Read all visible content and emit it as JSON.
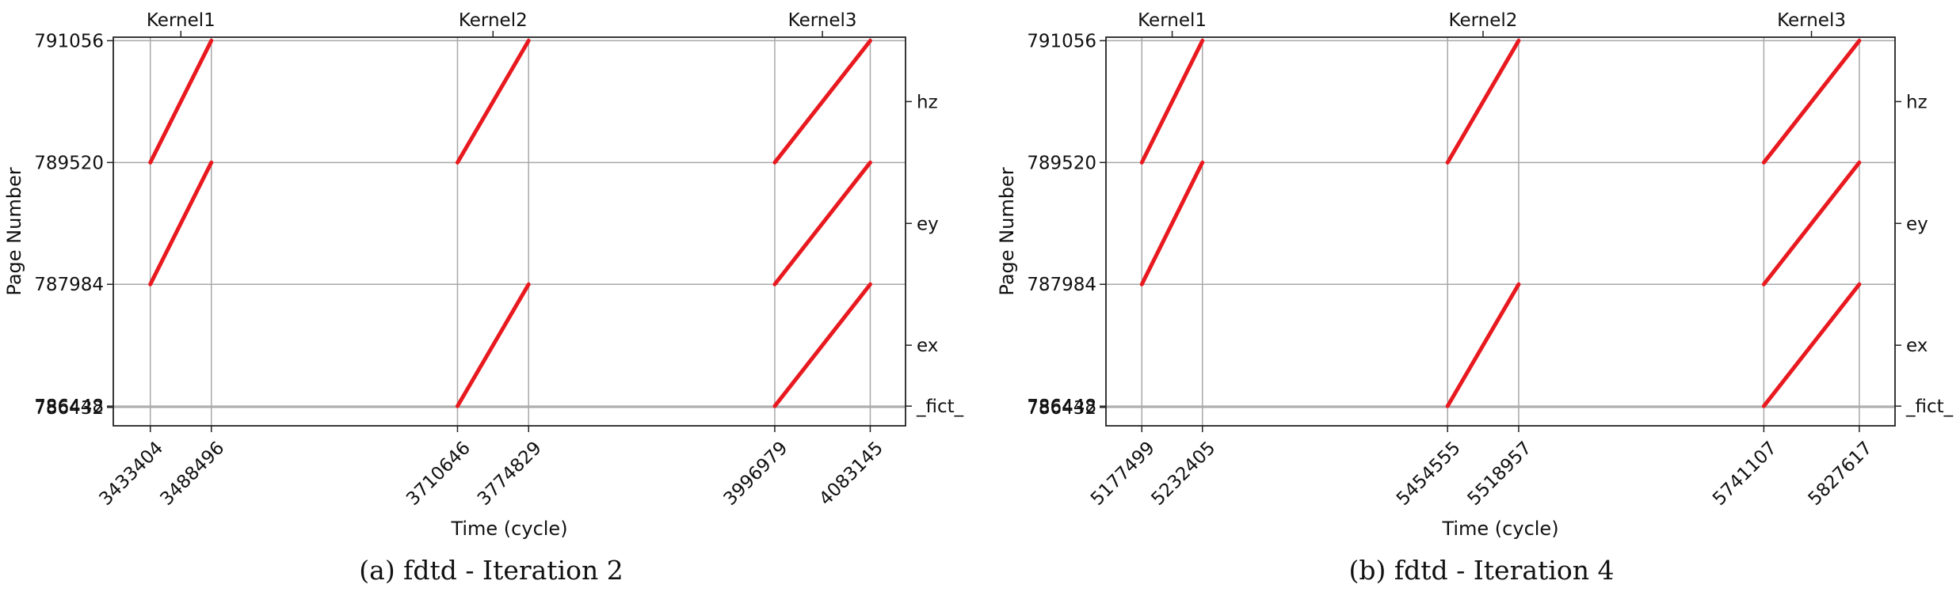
{
  "figure": {
    "background": "#ffffff",
    "series_color": "#e8191f",
    "grid_color": "#a8a8a8"
  },
  "chart_data": [
    {
      "type": "line",
      "caption": "(a) fdtd - Iteration 2",
      "xlabel": "Time (cycle)",
      "ylabel": "Page Number",
      "grid": true,
      "xlim": [
        3400000,
        4115000
      ],
      "ylim": [
        786200,
        791100
      ],
      "x_ticks": [
        3433404,
        3488496,
        3710646,
        3774829,
        3996979,
        4083145
      ],
      "x_tick_labels": [
        "3433404",
        "3488496",
        "3710646",
        "3774829",
        "3996979",
        "4083145"
      ],
      "y_ticks": [
        786432,
        786448,
        787984,
        789520,
        791056
      ],
      "y_tick_labels": [
        "786432",
        "786448",
        "787984",
        "789520",
        "791056"
      ],
      "top_ticks": [
        3461000,
        3742700,
        4040000
      ],
      "top_labels": [
        "Kernel1",
        "Kernel2",
        "Kernel3"
      ],
      "right_ticks": [
        786448,
        787216,
        788752,
        790288
      ],
      "right_labels": [
        "_fict_",
        "ex",
        "ey",
        "hz"
      ],
      "series": [
        {
          "name": "hz",
          "x": [
            3433404,
            3488496
          ],
          "y": [
            789520,
            791056
          ]
        },
        {
          "name": "ey",
          "x": [
            3433404,
            3488496
          ],
          "y": [
            787984,
            789520
          ]
        },
        {
          "name": "hz",
          "x": [
            3710646,
            3774829
          ],
          "y": [
            789520,
            791056
          ]
        },
        {
          "name": "ex",
          "x": [
            3710646,
            3774829
          ],
          "y": [
            786448,
            787984
          ]
        },
        {
          "name": "hz",
          "x": [
            3996979,
            4083145
          ],
          "y": [
            789520,
            791056
          ]
        },
        {
          "name": "ey",
          "x": [
            3996979,
            4083145
          ],
          "y": [
            787984,
            789520
          ]
        },
        {
          "name": "ex",
          "x": [
            3996979,
            4083145
          ],
          "y": [
            786448,
            787984
          ]
        }
      ]
    },
    {
      "type": "line",
      "caption": "(b) fdtd - Iteration 4",
      "xlabel": "Time (cycle)",
      "ylabel": "Page Number",
      "grid": true,
      "xlim": [
        5145000,
        5860000
      ],
      "ylim": [
        786200,
        791100
      ],
      "x_ticks": [
        5177499,
        5232405,
        5454555,
        5518957,
        5741107,
        5827617
      ],
      "x_tick_labels": [
        "5177499",
        "5232405",
        "5454555",
        "5518957",
        "5741107",
        "5827617"
      ],
      "y_ticks": [
        786432,
        786448,
        787984,
        789520,
        791056
      ],
      "y_tick_labels": [
        "786432",
        "786448",
        "787984",
        "789520",
        "791056"
      ],
      "top_ticks": [
        5205000,
        5486700,
        5784300
      ],
      "top_labels": [
        "Kernel1",
        "Kernel2",
        "Kernel3"
      ],
      "right_ticks": [
        786448,
        787216,
        788752,
        790288
      ],
      "right_labels": [
        "_fict_",
        "ex",
        "ey",
        "hz"
      ],
      "series": [
        {
          "name": "hz",
          "x": [
            5177499,
            5232405
          ],
          "y": [
            789520,
            791056
          ]
        },
        {
          "name": "ey",
          "x": [
            5177499,
            5232405
          ],
          "y": [
            787984,
            789520
          ]
        },
        {
          "name": "hz",
          "x": [
            5454555,
            5518957
          ],
          "y": [
            789520,
            791056
          ]
        },
        {
          "name": "ex",
          "x": [
            5454555,
            5518957
          ],
          "y": [
            786448,
            787984
          ]
        },
        {
          "name": "hz",
          "x": [
            5741107,
            5827617
          ],
          "y": [
            789520,
            791056
          ]
        },
        {
          "name": "ey",
          "x": [
            5741107,
            5827617
          ],
          "y": [
            787984,
            789520
          ]
        },
        {
          "name": "ex",
          "x": [
            5741107,
            5827617
          ],
          "y": [
            786448,
            787984
          ]
        }
      ]
    }
  ]
}
